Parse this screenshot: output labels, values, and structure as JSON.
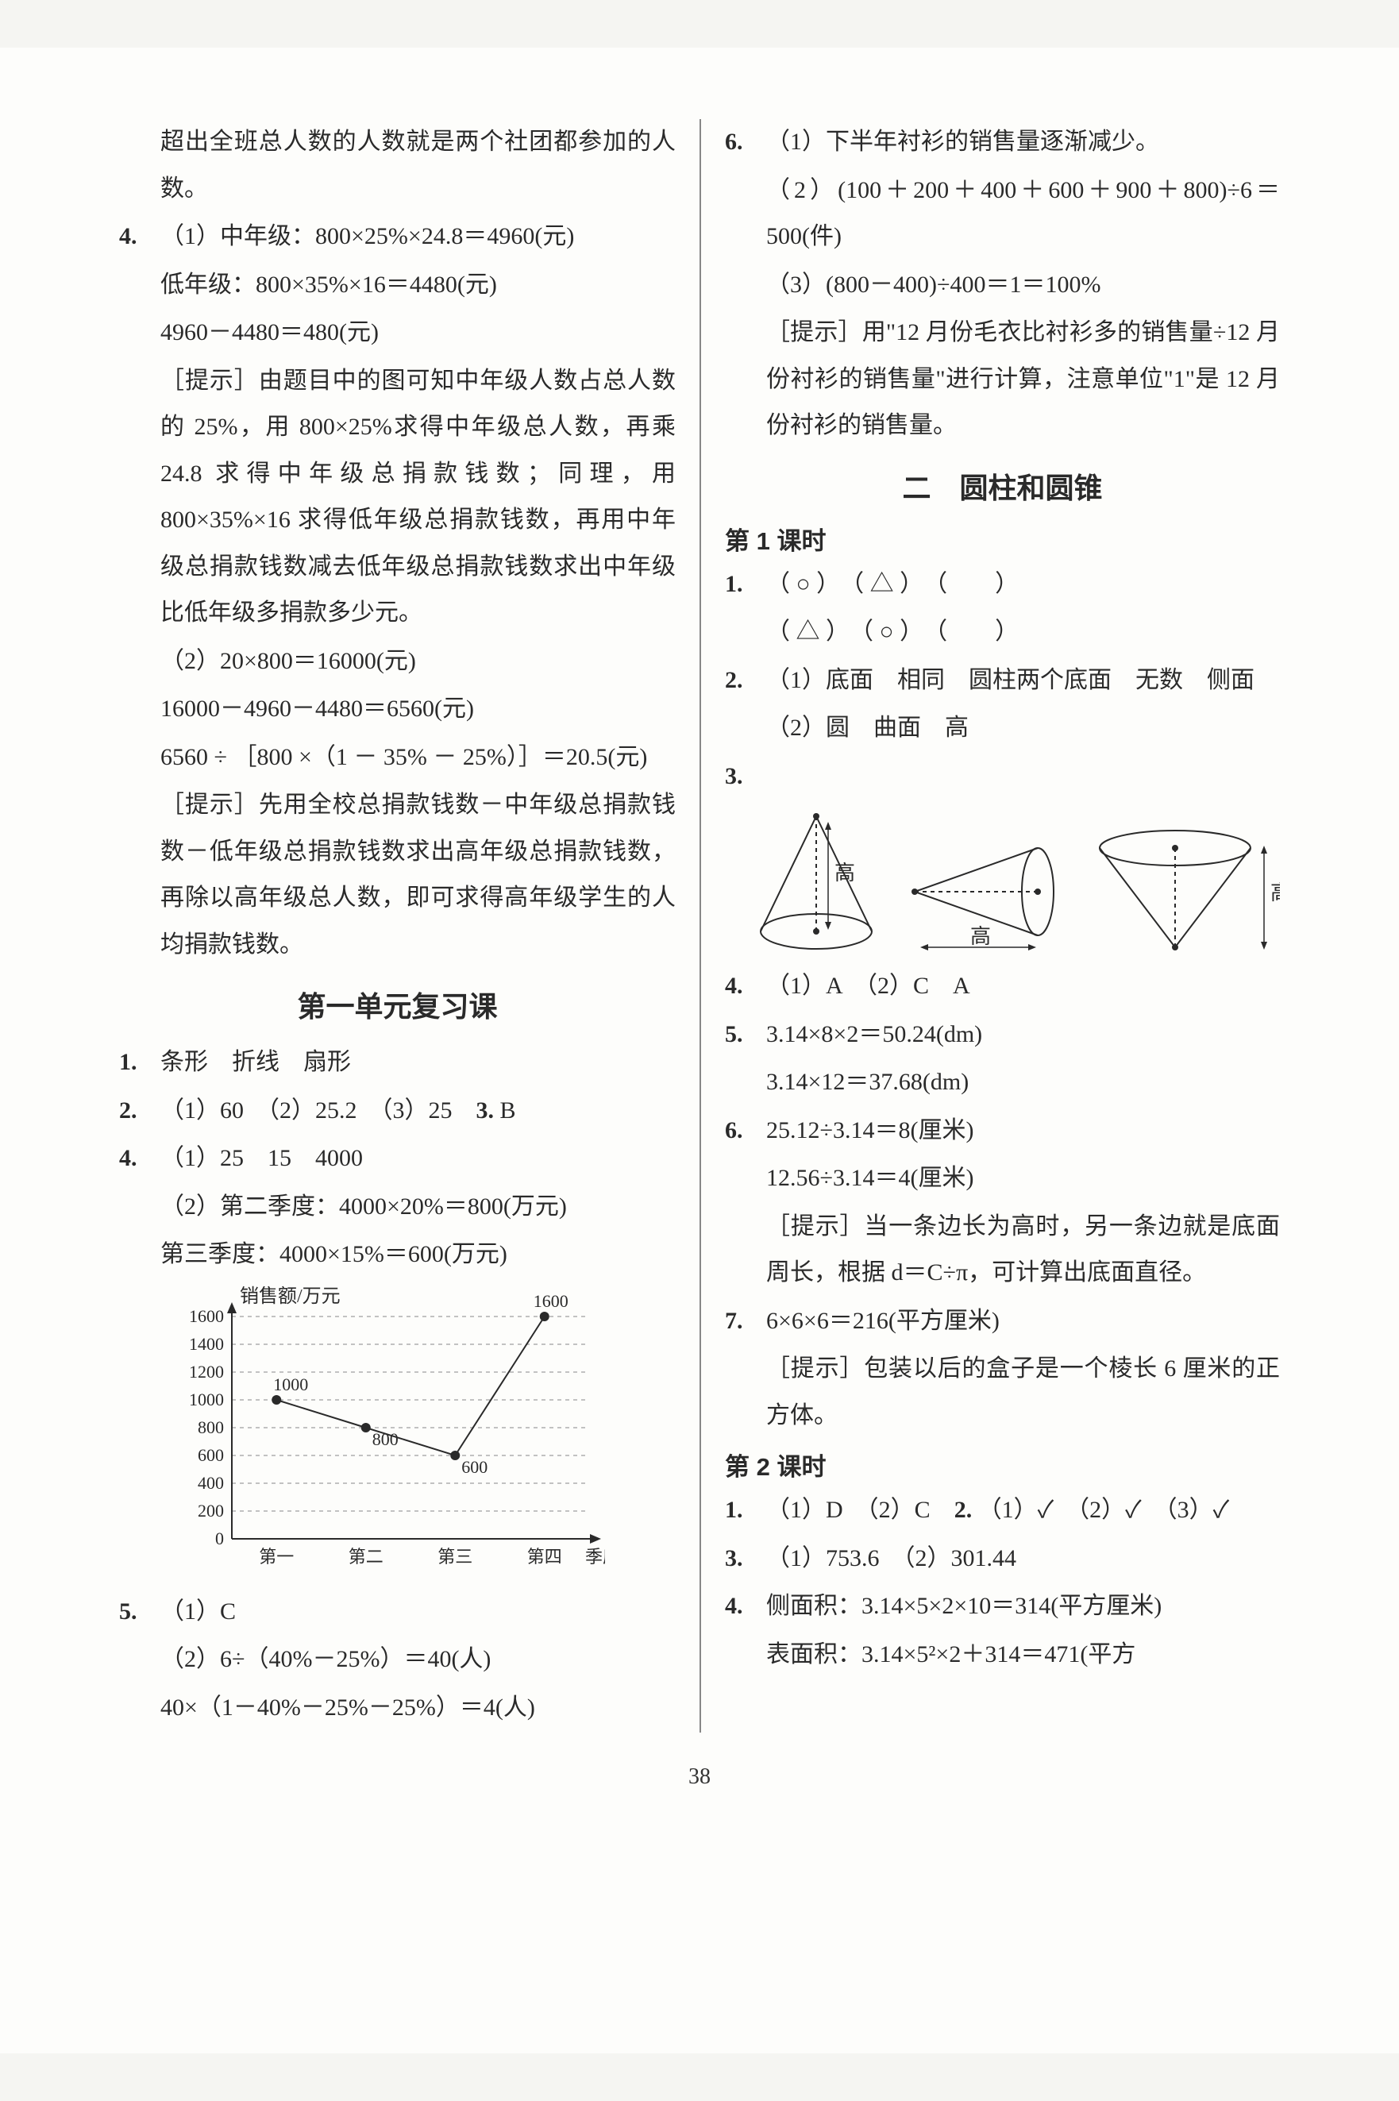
{
  "pageNumber": "38",
  "left": {
    "p_top1": "超出全班总人数的人数就是两个社团都参加的人数。",
    "q4": {
      "num": "4.",
      "l1": "（1）中年级：800×25%×24.8＝4960(元)",
      "l2": "低年级：800×35%×16＝4480(元)",
      "l3": "4960－4480＝480(元)",
      "hint_label": "［提示］",
      "hint1": "由题目中的图可知中年级人数占总人数的 25%，用 800×25%求得中年级总人数，再乘 24.8 求得中年级总捐款钱数；同理，用 800×35%×16 求得低年级总捐款钱数，再用中年级总捐款钱数减去低年级总捐款钱数求出中年级比低年级多捐款多少元。",
      "l4": "（2）20×800＝16000(元)",
      "l5": "16000－4960－4480＝6560(元)",
      "l6": "6560 ÷ ［800 ×（1 － 35% － 25%）］＝20.5(元)",
      "hint2": "先用全校总捐款钱数－中年级总捐款钱数－低年级总捐款钱数求出高年级总捐款钱数，再除以高年级总人数，即可求得高年级学生的人均捐款钱数。"
    },
    "review_title": "第一单元复习课",
    "r1": {
      "num": "1.",
      "text": "条形　折线　扇形"
    },
    "r2": {
      "num": "2.",
      "text": "（1）60　（2）25.2　（3）25　"
    },
    "r3": {
      "num": "3.",
      "text": "B"
    },
    "r4": {
      "num": "4.",
      "l1": "（1）25　15　4000",
      "l2": "（2）第二季度：4000×20%＝800(万元)",
      "l3": "第三季度：4000×15%＝600(万元)"
    },
    "r5": {
      "num": "5.",
      "l1": "（1）C",
      "l2": "（2）6÷（40%－25%）＝40(人)",
      "l3": "40×（1－40%－25%－25%）＝4(人)"
    },
    "chart": {
      "type": "line",
      "title": "销售额/万元",
      "xTitle": "季度",
      "xLabels": [
        "第一",
        "第二",
        "第三",
        "第四"
      ],
      "values": [
        1000,
        800,
        600,
        1600
      ],
      "valueLabels": [
        "1000",
        "800",
        "600",
        "1600"
      ],
      "yticks": [
        0,
        200,
        400,
        600,
        800,
        1000,
        1200,
        1400,
        1600
      ],
      "ylim": [
        0,
        1600
      ],
      "colors": {
        "background": "#fdfdfb",
        "axis": "#2a2a2a",
        "grid": "#888888",
        "line": "#2a2a2a",
        "marker": "#2a2a2a",
        "text": "#2a2a2a"
      },
      "font_size": 22,
      "marker": "circle",
      "marker_size": 6,
      "line_width": 2,
      "grid_dash": "5,5"
    }
  },
  "right": {
    "q6": {
      "num": "6.",
      "l1": "（1）下半年衬衫的销售量逐渐减少。",
      "l2": "（2）(100＋200＋400＋600＋900＋800)÷6＝500(件)",
      "l3": "（3）(800－400)÷400＝1＝100%",
      "hint_label": "［提示］",
      "hint": "用\"12 月份毛衣比衬衫多的销售量÷12 月份衬衫的销售量\"进行计算，注意单位\"1\"是 12 月份衬衫的销售量。"
    },
    "unit2_title": "二　圆柱和圆锥",
    "k1_title": "第 1 课时",
    "k1": {
      "q1": {
        "num": "1.",
        "l1": "（ ○ ）　（ △ ）　（　　）",
        "l2": "（ △ ）　（ ○ ）　（　　）"
      },
      "q2": {
        "num": "2.",
        "l1": "（1）底面　相同　圆柱两个底面　无数　侧面",
        "l2": "（2）圆　曲面　高"
      },
      "q3": {
        "num": "3."
      },
      "q4": {
        "num": "4.",
        "text": "（1）A　（2）C　A"
      },
      "q5": {
        "num": "5.",
        "l1": "3.14×8×2＝50.24(dm)",
        "l2": "3.14×12＝37.68(dm)"
      },
      "q6": {
        "num": "6.",
        "l1": "25.12÷3.14＝8(厘米)",
        "l2": "12.56÷3.14＝4(厘米)",
        "hint_label": "［提示］",
        "hint": "当一条边长为高时，另一条边就是底面周长，根据 d＝C÷π，可计算出底面直径。"
      },
      "q7": {
        "num": "7.",
        "l1": "6×6×6＝216(平方厘米)",
        "hint_label": "［提示］",
        "hint": "包装以后的盒子是一个棱长 6 厘米的正方体。"
      }
    },
    "diagrams": {
      "label_height": "高",
      "stroke": "#2a2a2a",
      "dash": "5,5",
      "font_size": 26
    },
    "k2_title": "第 2 课时",
    "k2": {
      "q1": {
        "num": "1.",
        "text": "（1）D　（2）C　"
      },
      "q2": {
        "num": "2.",
        "text": "（1）✓　（2）✓　（3）✓"
      },
      "q3": {
        "num": "3.",
        "text": "（1）753.6　（2）301.44"
      },
      "q4": {
        "num": "4.",
        "l1": "侧面积：3.14×5×2×10＝314(平方厘米)",
        "l2": "表面积：3.14×5²×2＋314＝471(平方"
      }
    }
  }
}
